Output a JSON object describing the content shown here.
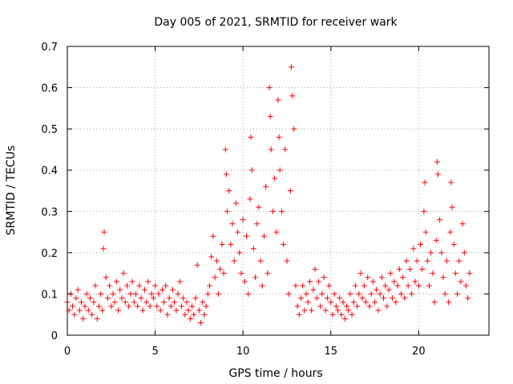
{
  "chart_data": {
    "type": "scatter",
    "title": "Day 005 of 2021, SRMTID for receiver wark",
    "xlabel": "GPS time / hours",
    "ylabel": "SRMTID / TECUs",
    "xlim": [
      0,
      24
    ],
    "ylim": [
      0,
      0.7
    ],
    "xticks": [
      0,
      5,
      10,
      15,
      20
    ],
    "yticks": [
      0,
      0.1,
      0.2,
      0.3,
      0.4,
      0.5,
      0.6,
      0.7
    ],
    "xtick_labels": [
      "0",
      "5",
      "10",
      "15",
      "20"
    ],
    "ytick_labels": [
      "0",
      "0.1",
      "0.2",
      "0.3",
      "0.4",
      "0.5",
      "0.6",
      "0.7"
    ],
    "grid": true,
    "marker": "+",
    "color": "#ff0000",
    "data_range_x": [
      0,
      22.9
    ],
    "series": [
      {
        "name": "SRMTID",
        "points": [
          [
            0.0,
            0.08
          ],
          [
            0.1,
            0.06
          ],
          [
            0.2,
            0.1
          ],
          [
            0.3,
            0.07
          ],
          [
            0.4,
            0.05
          ],
          [
            0.5,
            0.09
          ],
          [
            0.6,
            0.11
          ],
          [
            0.7,
            0.06
          ],
          [
            0.8,
            0.08
          ],
          [
            0.9,
            0.04
          ],
          [
            1.0,
            0.07
          ],
          [
            1.1,
            0.1
          ],
          [
            1.2,
            0.06
          ],
          [
            1.3,
            0.09
          ],
          [
            1.4,
            0.05
          ],
          [
            1.5,
            0.08
          ],
          [
            1.6,
            0.12
          ],
          [
            1.7,
            0.04
          ],
          [
            1.8,
            0.07
          ],
          [
            1.9,
            0.1
          ],
          [
            2.0,
            0.06
          ],
          [
            2.05,
            0.21
          ],
          [
            2.1,
            0.25
          ],
          [
            2.2,
            0.14
          ],
          [
            2.3,
            0.09
          ],
          [
            2.4,
            0.12
          ],
          [
            2.5,
            0.07
          ],
          [
            2.6,
            0.1
          ],
          [
            2.7,
            0.08
          ],
          [
            2.8,
            0.13
          ],
          [
            2.9,
            0.06
          ],
          [
            3.0,
            0.11
          ],
          [
            3.1,
            0.09
          ],
          [
            3.2,
            0.15
          ],
          [
            3.3,
            0.08
          ],
          [
            3.4,
            0.12
          ],
          [
            3.5,
            0.07
          ],
          [
            3.6,
            0.1
          ],
          [
            3.7,
            0.13
          ],
          [
            3.8,
            0.08
          ],
          [
            3.9,
            0.1
          ],
          [
            4.0,
            0.07
          ],
          [
            4.1,
            0.12
          ],
          [
            4.2,
            0.09
          ],
          [
            4.3,
            0.06
          ],
          [
            4.4,
            0.11
          ],
          [
            4.5,
            0.08
          ],
          [
            4.6,
            0.13
          ],
          [
            4.7,
            0.07
          ],
          [
            4.8,
            0.1
          ],
          [
            4.9,
            0.09
          ],
          [
            5.0,
            0.12
          ],
          [
            5.1,
            0.07
          ],
          [
            5.2,
            0.1
          ],
          [
            5.3,
            0.06
          ],
          [
            5.4,
            0.11
          ],
          [
            5.5,
            0.08
          ],
          [
            5.6,
            0.12
          ],
          [
            5.7,
            0.05
          ],
          [
            5.8,
            0.09
          ],
          [
            5.9,
            0.07
          ],
          [
            6.0,
            0.11
          ],
          [
            6.1,
            0.08
          ],
          [
            6.2,
            0.06
          ],
          [
            6.3,
            0.1
          ],
          [
            6.4,
            0.13
          ],
          [
            6.5,
            0.07
          ],
          [
            6.6,
            0.09
          ],
          [
            6.7,
            0.05
          ],
          [
            6.8,
            0.08
          ],
          [
            6.9,
            0.06
          ],
          [
            7.0,
            0.04
          ],
          [
            7.1,
            0.07
          ],
          [
            7.2,
            0.05
          ],
          [
            7.3,
            0.09
          ],
          [
            7.4,
            0.17
          ],
          [
            7.5,
            0.06
          ],
          [
            7.6,
            0.03
          ],
          [
            7.7,
            0.08
          ],
          [
            7.8,
            0.05
          ],
          [
            7.9,
            0.07
          ],
          [
            8.0,
            0.1
          ],
          [
            8.1,
            0.12
          ],
          [
            8.2,
            0.19
          ],
          [
            8.3,
            0.24
          ],
          [
            8.4,
            0.14
          ],
          [
            8.5,
            0.18
          ],
          [
            8.6,
            0.1
          ],
          [
            8.7,
            0.16
          ],
          [
            8.8,
            0.22
          ],
          [
            8.9,
            0.15
          ],
          [
            9.0,
            0.45
          ],
          [
            9.05,
            0.39
          ],
          [
            9.1,
            0.3
          ],
          [
            9.2,
            0.35
          ],
          [
            9.3,
            0.22
          ],
          [
            9.4,
            0.27
          ],
          [
            9.5,
            0.18
          ],
          [
            9.6,
            0.32
          ],
          [
            9.7,
            0.25
          ],
          [
            9.8,
            0.2
          ],
          [
            9.9,
            0.15
          ],
          [
            10.0,
            0.28
          ],
          [
            10.1,
            0.13
          ],
          [
            10.2,
            0.24
          ],
          [
            10.3,
            0.1
          ],
          [
            10.4,
            0.33
          ],
          [
            10.45,
            0.48
          ],
          [
            10.5,
            0.4
          ],
          [
            10.6,
            0.21
          ],
          [
            10.7,
            0.14
          ],
          [
            10.8,
            0.27
          ],
          [
            10.9,
            0.31
          ],
          [
            11.0,
            0.18
          ],
          [
            11.1,
            0.12
          ],
          [
            11.2,
            0.24
          ],
          [
            11.3,
            0.36
          ],
          [
            11.4,
            0.15
          ],
          [
            11.5,
            0.6
          ],
          [
            11.55,
            0.53
          ],
          [
            11.6,
            0.45
          ],
          [
            11.7,
            0.3
          ],
          [
            11.8,
            0.38
          ],
          [
            11.9,
            0.25
          ],
          [
            12.0,
            0.57
          ],
          [
            12.05,
            0.48
          ],
          [
            12.1,
            0.4
          ],
          [
            12.2,
            0.3
          ],
          [
            12.3,
            0.22
          ],
          [
            12.4,
            0.45
          ],
          [
            12.5,
            0.18
          ],
          [
            12.6,
            0.1
          ],
          [
            12.7,
            0.35
          ],
          [
            12.75,
            0.65
          ],
          [
            12.8,
            0.58
          ],
          [
            12.9,
            0.5
          ],
          [
            13.0,
            0.12
          ],
          [
            13.1,
            0.07
          ],
          [
            13.2,
            0.05
          ],
          [
            13.3,
            0.09
          ],
          [
            13.4,
            0.12
          ],
          [
            13.5,
            0.06
          ],
          [
            13.6,
            0.1
          ],
          [
            13.7,
            0.08
          ],
          [
            13.8,
            0.13
          ],
          [
            13.9,
            0.06
          ],
          [
            14.0,
            0.11
          ],
          [
            14.1,
            0.16
          ],
          [
            14.2,
            0.09
          ],
          [
            14.3,
            0.13
          ],
          [
            14.4,
            0.07
          ],
          [
            14.5,
            0.1
          ],
          [
            14.6,
            0.14
          ],
          [
            14.7,
            0.06
          ],
          [
            14.8,
            0.09
          ],
          [
            14.9,
            0.12
          ],
          [
            15.0,
            0.08
          ],
          [
            15.1,
            0.05
          ],
          [
            15.2,
            0.1
          ],
          [
            15.3,
            0.07
          ],
          [
            15.4,
            0.06
          ],
          [
            15.5,
            0.09
          ],
          [
            15.6,
            0.05
          ],
          [
            15.7,
            0.08
          ],
          [
            15.8,
            0.04
          ],
          [
            15.9,
            0.07
          ],
          [
            16.0,
            0.06
          ],
          [
            16.1,
            0.1
          ],
          [
            16.2,
            0.05
          ],
          [
            16.3,
            0.08
          ],
          [
            16.4,
            0.12
          ],
          [
            16.5,
            0.07
          ],
          [
            16.6,
            0.1
          ],
          [
            16.7,
            0.15
          ],
          [
            16.8,
            0.09
          ],
          [
            16.9,
            0.12
          ],
          [
            17.0,
            0.08
          ],
          [
            17.1,
            0.14
          ],
          [
            17.2,
            0.07
          ],
          [
            17.3,
            0.1
          ],
          [
            17.4,
            0.13
          ],
          [
            17.5,
            0.08
          ],
          [
            17.6,
            0.11
          ],
          [
            17.7,
            0.06
          ],
          [
            17.8,
            0.1
          ],
          [
            17.9,
            0.14
          ],
          [
            18.0,
            0.09
          ],
          [
            18.1,
            0.12
          ],
          [
            18.2,
            0.07
          ],
          [
            18.3,
            0.11
          ],
          [
            18.4,
            0.15
          ],
          [
            18.5,
            0.09
          ],
          [
            18.6,
            0.13
          ],
          [
            18.7,
            0.08
          ],
          [
            18.8,
            0.12
          ],
          [
            18.9,
            0.16
          ],
          [
            19.0,
            0.1
          ],
          [
            19.1,
            0.14
          ],
          [
            19.2,
            0.09
          ],
          [
            19.3,
            0.18
          ],
          [
            19.4,
            0.12
          ],
          [
            19.5,
            0.16
          ],
          [
            19.6,
            0.1
          ],
          [
            19.7,
            0.21
          ],
          [
            19.8,
            0.13
          ],
          [
            19.9,
            0.18
          ],
          [
            20.0,
            0.12
          ],
          [
            20.1,
            0.22
          ],
          [
            20.2,
            0.16
          ],
          [
            20.3,
            0.3
          ],
          [
            20.35,
            0.37
          ],
          [
            20.4,
            0.25
          ],
          [
            20.5,
            0.18
          ],
          [
            20.6,
            0.12
          ],
          [
            20.7,
            0.2
          ],
          [
            20.8,
            0.15
          ],
          [
            20.9,
            0.08
          ],
          [
            21.0,
            0.23
          ],
          [
            21.05,
            0.42
          ],
          [
            21.1,
            0.39
          ],
          [
            21.2,
            0.28
          ],
          [
            21.3,
            0.2
          ],
          [
            21.4,
            0.14
          ],
          [
            21.5,
            0.1
          ],
          [
            21.6,
            0.18
          ],
          [
            21.7,
            0.08
          ],
          [
            21.8,
            0.25
          ],
          [
            21.85,
            0.37
          ],
          [
            21.9,
            0.31
          ],
          [
            22.0,
            0.22
          ],
          [
            22.1,
            0.15
          ],
          [
            22.2,
            0.1
          ],
          [
            22.3,
            0.18
          ],
          [
            22.4,
            0.13
          ],
          [
            22.5,
            0.27
          ],
          [
            22.6,
            0.2
          ],
          [
            22.7,
            0.12
          ],
          [
            22.8,
            0.09
          ],
          [
            22.9,
            0.15
          ]
        ]
      }
    ]
  }
}
